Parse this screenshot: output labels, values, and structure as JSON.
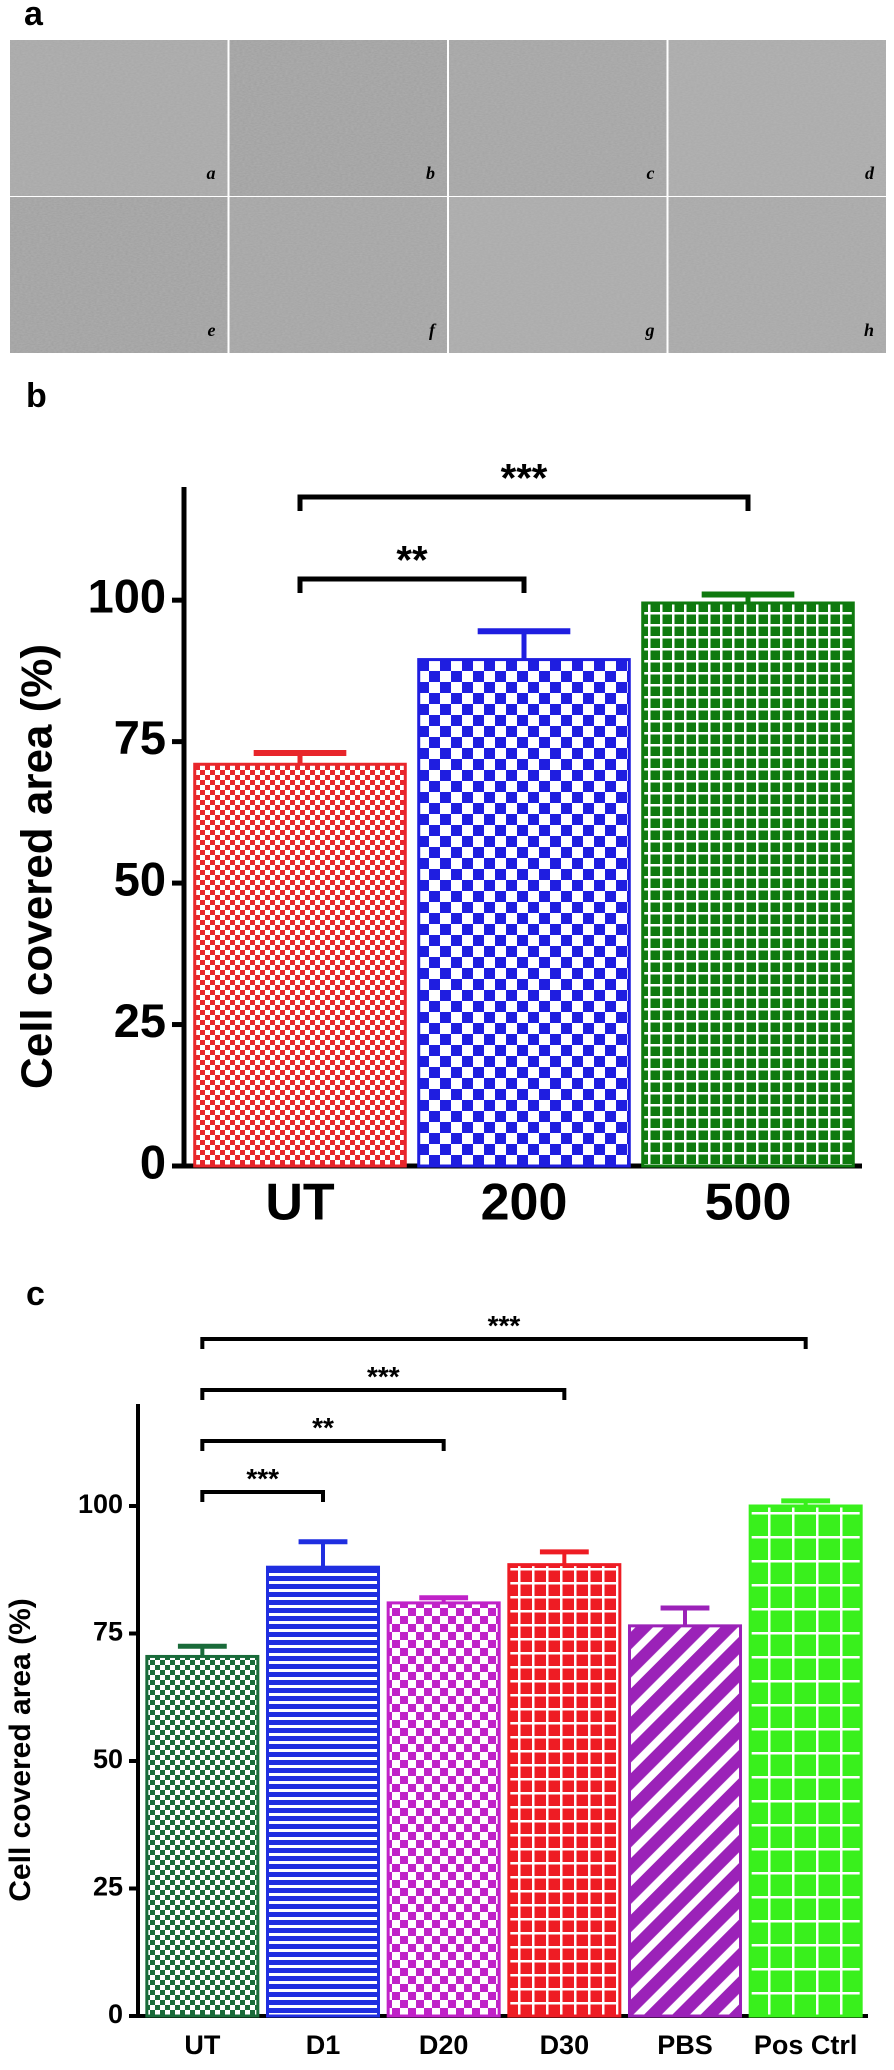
{
  "panel_labels": [
    "a",
    "b",
    "c"
  ],
  "images": {
    "labels": [
      "a",
      "b",
      "c",
      "d",
      "e",
      "f",
      "g",
      "h"
    ]
  },
  "chart_data": [
    {
      "type": "bar",
      "y_label": "Cell covered area (%)",
      "categories": [
        "UT",
        "200",
        "500"
      ],
      "values": [
        71,
        89.5,
        99.5
      ],
      "errors": [
        2,
        5,
        1.5
      ],
      "colors": [
        "#e8262b",
        "#1f1ee0",
        "#0f7a0f"
      ],
      "patterns": [
        "checker-fine",
        "checker-coarse",
        "grid-fine"
      ],
      "ylim": [
        0,
        120
      ],
      "yticks": [
        0,
        25,
        50,
        75,
        100
      ],
      "annotations": [
        {
          "text": "***",
          "from": "UT",
          "to": "500"
        },
        {
          "text": "**",
          "from": "UT",
          "to": "200"
        }
      ]
    },
    {
      "type": "bar",
      "y_label": "Cell covered area (%)",
      "categories": [
        "UT",
        "D1",
        "D20",
        "D30",
        "PBS",
        "Pos Ctrl"
      ],
      "values": [
        70.5,
        88,
        81,
        88.5,
        76.5,
        100
      ],
      "errors": [
        2,
        5,
        1,
        2.5,
        3.5,
        1
      ],
      "colors": [
        "#1a6b3a",
        "#1f2ee0",
        "#c022c8",
        "#ee1c24",
        "#9b22b8",
        "#39f01c"
      ],
      "patterns": [
        "checker-fine",
        "hlines",
        "checker",
        "grid",
        "diagonal",
        "grid-coarse"
      ],
      "ylim": [
        0,
        120
      ],
      "yticks": [
        0,
        25,
        50,
        75,
        100
      ],
      "annotations": [
        {
          "text": "***",
          "from": "UT",
          "to": "Pos Ctrl"
        },
        {
          "text": "***",
          "from": "UT",
          "to": "D30"
        },
        {
          "text": "**",
          "from": "UT",
          "to": "D20"
        },
        {
          "text": "***",
          "from": "UT",
          "to": "D1"
        }
      ]
    }
  ]
}
